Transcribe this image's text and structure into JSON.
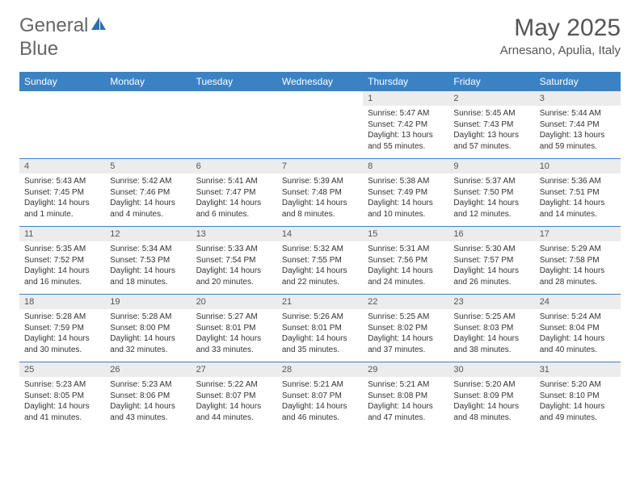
{
  "logo": {
    "text1": "General",
    "text2": "Blue"
  },
  "title": "May 2025",
  "subtitle": "Arnesano, Apulia, Italy",
  "colors": {
    "header_bg": "#3b82c4",
    "header_text": "#ffffff",
    "daynum_bg": "#ececec",
    "text": "#333333",
    "logo_word": "#666666",
    "logo_accent": "#2d6fb3"
  },
  "day_headers": [
    "Sunday",
    "Monday",
    "Tuesday",
    "Wednesday",
    "Thursday",
    "Friday",
    "Saturday"
  ],
  "weeks": [
    [
      null,
      null,
      null,
      null,
      {
        "n": "1",
        "sr": "Sunrise: 5:47 AM",
        "ss": "Sunset: 7:42 PM",
        "dl": "Daylight: 13 hours and 55 minutes."
      },
      {
        "n": "2",
        "sr": "Sunrise: 5:45 AM",
        "ss": "Sunset: 7:43 PM",
        "dl": "Daylight: 13 hours and 57 minutes."
      },
      {
        "n": "3",
        "sr": "Sunrise: 5:44 AM",
        "ss": "Sunset: 7:44 PM",
        "dl": "Daylight: 13 hours and 59 minutes."
      }
    ],
    [
      {
        "n": "4",
        "sr": "Sunrise: 5:43 AM",
        "ss": "Sunset: 7:45 PM",
        "dl": "Daylight: 14 hours and 1 minute."
      },
      {
        "n": "5",
        "sr": "Sunrise: 5:42 AM",
        "ss": "Sunset: 7:46 PM",
        "dl": "Daylight: 14 hours and 4 minutes."
      },
      {
        "n": "6",
        "sr": "Sunrise: 5:41 AM",
        "ss": "Sunset: 7:47 PM",
        "dl": "Daylight: 14 hours and 6 minutes."
      },
      {
        "n": "7",
        "sr": "Sunrise: 5:39 AM",
        "ss": "Sunset: 7:48 PM",
        "dl": "Daylight: 14 hours and 8 minutes."
      },
      {
        "n": "8",
        "sr": "Sunrise: 5:38 AM",
        "ss": "Sunset: 7:49 PM",
        "dl": "Daylight: 14 hours and 10 minutes."
      },
      {
        "n": "9",
        "sr": "Sunrise: 5:37 AM",
        "ss": "Sunset: 7:50 PM",
        "dl": "Daylight: 14 hours and 12 minutes."
      },
      {
        "n": "10",
        "sr": "Sunrise: 5:36 AM",
        "ss": "Sunset: 7:51 PM",
        "dl": "Daylight: 14 hours and 14 minutes."
      }
    ],
    [
      {
        "n": "11",
        "sr": "Sunrise: 5:35 AM",
        "ss": "Sunset: 7:52 PM",
        "dl": "Daylight: 14 hours and 16 minutes."
      },
      {
        "n": "12",
        "sr": "Sunrise: 5:34 AM",
        "ss": "Sunset: 7:53 PM",
        "dl": "Daylight: 14 hours and 18 minutes."
      },
      {
        "n": "13",
        "sr": "Sunrise: 5:33 AM",
        "ss": "Sunset: 7:54 PM",
        "dl": "Daylight: 14 hours and 20 minutes."
      },
      {
        "n": "14",
        "sr": "Sunrise: 5:32 AM",
        "ss": "Sunset: 7:55 PM",
        "dl": "Daylight: 14 hours and 22 minutes."
      },
      {
        "n": "15",
        "sr": "Sunrise: 5:31 AM",
        "ss": "Sunset: 7:56 PM",
        "dl": "Daylight: 14 hours and 24 minutes."
      },
      {
        "n": "16",
        "sr": "Sunrise: 5:30 AM",
        "ss": "Sunset: 7:57 PM",
        "dl": "Daylight: 14 hours and 26 minutes."
      },
      {
        "n": "17",
        "sr": "Sunrise: 5:29 AM",
        "ss": "Sunset: 7:58 PM",
        "dl": "Daylight: 14 hours and 28 minutes."
      }
    ],
    [
      {
        "n": "18",
        "sr": "Sunrise: 5:28 AM",
        "ss": "Sunset: 7:59 PM",
        "dl": "Daylight: 14 hours and 30 minutes."
      },
      {
        "n": "19",
        "sr": "Sunrise: 5:28 AM",
        "ss": "Sunset: 8:00 PM",
        "dl": "Daylight: 14 hours and 32 minutes."
      },
      {
        "n": "20",
        "sr": "Sunrise: 5:27 AM",
        "ss": "Sunset: 8:01 PM",
        "dl": "Daylight: 14 hours and 33 minutes."
      },
      {
        "n": "21",
        "sr": "Sunrise: 5:26 AM",
        "ss": "Sunset: 8:01 PM",
        "dl": "Daylight: 14 hours and 35 minutes."
      },
      {
        "n": "22",
        "sr": "Sunrise: 5:25 AM",
        "ss": "Sunset: 8:02 PM",
        "dl": "Daylight: 14 hours and 37 minutes."
      },
      {
        "n": "23",
        "sr": "Sunrise: 5:25 AM",
        "ss": "Sunset: 8:03 PM",
        "dl": "Daylight: 14 hours and 38 minutes."
      },
      {
        "n": "24",
        "sr": "Sunrise: 5:24 AM",
        "ss": "Sunset: 8:04 PM",
        "dl": "Daylight: 14 hours and 40 minutes."
      }
    ],
    [
      {
        "n": "25",
        "sr": "Sunrise: 5:23 AM",
        "ss": "Sunset: 8:05 PM",
        "dl": "Daylight: 14 hours and 41 minutes."
      },
      {
        "n": "26",
        "sr": "Sunrise: 5:23 AM",
        "ss": "Sunset: 8:06 PM",
        "dl": "Daylight: 14 hours and 43 minutes."
      },
      {
        "n": "27",
        "sr": "Sunrise: 5:22 AM",
        "ss": "Sunset: 8:07 PM",
        "dl": "Daylight: 14 hours and 44 minutes."
      },
      {
        "n": "28",
        "sr": "Sunrise: 5:21 AM",
        "ss": "Sunset: 8:07 PM",
        "dl": "Daylight: 14 hours and 46 minutes."
      },
      {
        "n": "29",
        "sr": "Sunrise: 5:21 AM",
        "ss": "Sunset: 8:08 PM",
        "dl": "Daylight: 14 hours and 47 minutes."
      },
      {
        "n": "30",
        "sr": "Sunrise: 5:20 AM",
        "ss": "Sunset: 8:09 PM",
        "dl": "Daylight: 14 hours and 48 minutes."
      },
      {
        "n": "31",
        "sr": "Sunrise: 5:20 AM",
        "ss": "Sunset: 8:10 PM",
        "dl": "Daylight: 14 hours and 49 minutes."
      }
    ]
  ]
}
